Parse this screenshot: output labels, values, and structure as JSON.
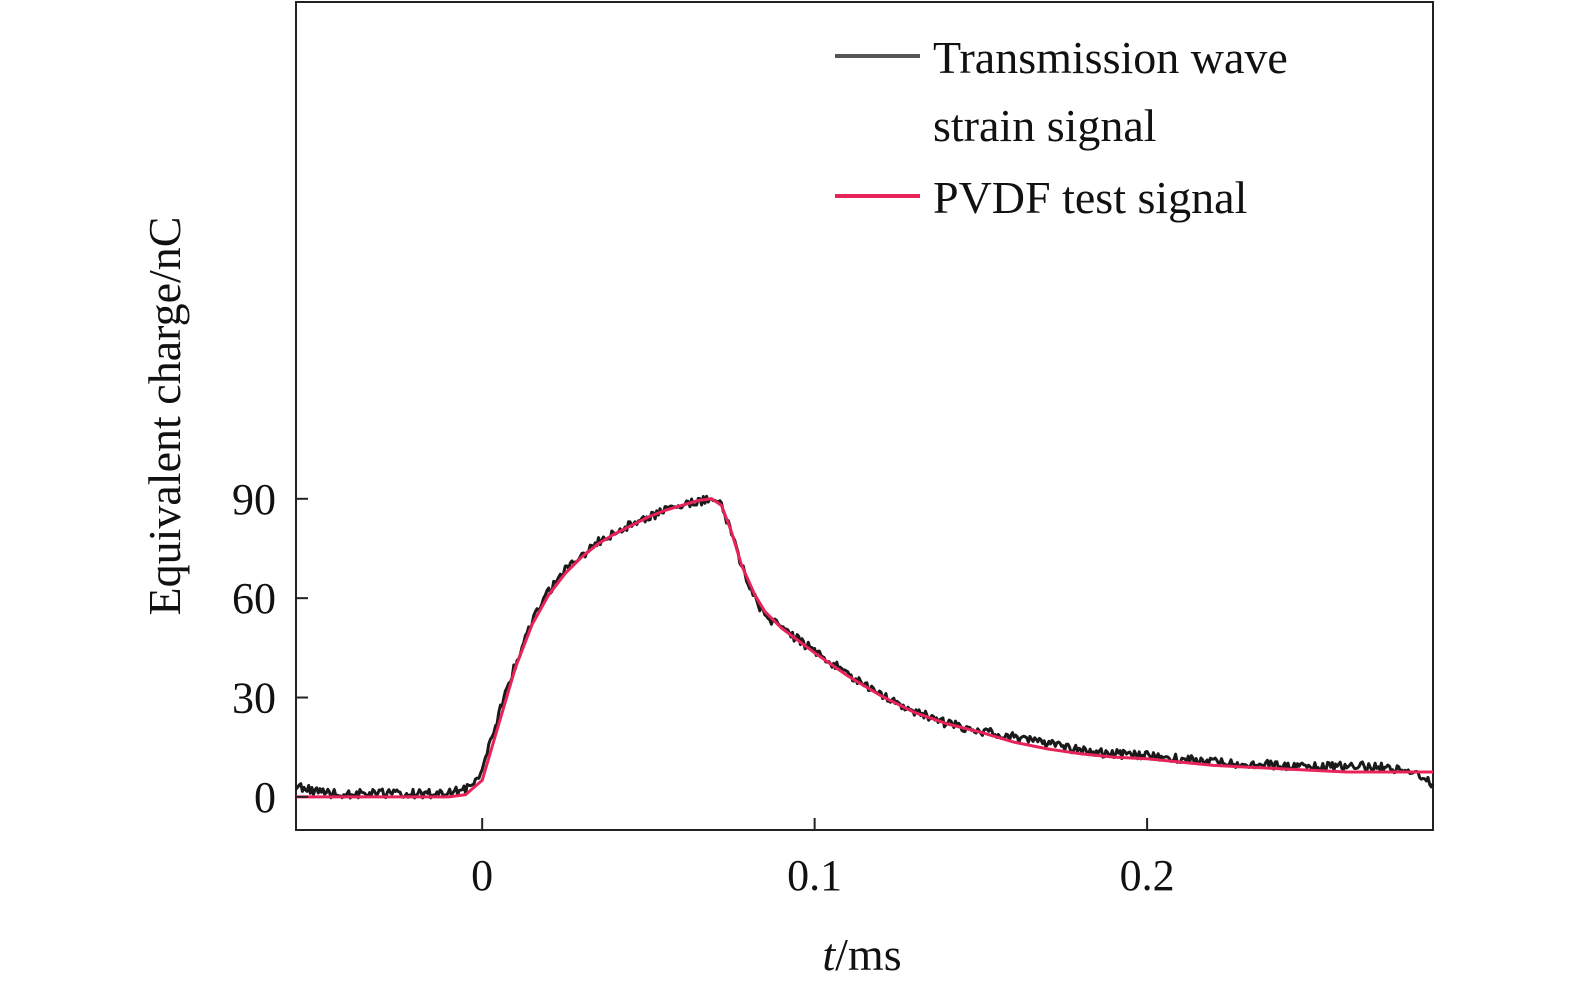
{
  "chart_data": {
    "type": "line",
    "xlabel_italic": "t",
    "xlabel_unit": "/ms",
    "ylabel": "Equivalent charge/nC",
    "xlim": [
      -0.056,
      0.286
    ],
    "ylim": [
      -10,
      240
    ],
    "x_ticks": [
      0,
      0.1,
      0.2
    ],
    "x_tick_labels": [
      "0",
      "0.1",
      "0.2"
    ],
    "y_ticks": [
      0,
      30,
      60,
      90
    ],
    "y_tick_labels": [
      "0",
      "30",
      "60",
      "90"
    ],
    "grid": false,
    "legend_position": "top-right",
    "series": [
      {
        "name": "Transmission wave strain signal",
        "legend_lines": [
          "Transmission wave",
          "strain signal"
        ],
        "color": "#1a1a1a",
        "noisy": true,
        "x": [
          -0.056,
          -0.045,
          -0.03,
          -0.015,
          -0.005,
          0.0,
          0.005,
          0.01,
          0.015,
          0.02,
          0.025,
          0.03,
          0.035,
          0.04,
          0.045,
          0.05,
          0.055,
          0.06,
          0.065,
          0.069,
          0.072,
          0.075,
          0.078,
          0.082,
          0.085,
          0.09,
          0.1,
          0.11,
          0.12,
          0.13,
          0.14,
          0.15,
          0.16,
          0.17,
          0.18,
          0.19,
          0.2,
          0.21,
          0.22,
          0.23,
          0.24,
          0.25,
          0.26,
          0.27,
          0.28,
          0.286
        ],
        "y": [
          3,
          1,
          1,
          1,
          2,
          8,
          25,
          40,
          53,
          62,
          69,
          73,
          77,
          80,
          82.5,
          84.5,
          86.5,
          88,
          89,
          90,
          88,
          80,
          70,
          60,
          55,
          51,
          44,
          37,
          31,
          26,
          22,
          20,
          18,
          16,
          14,
          13,
          12.5,
          11.5,
          10.5,
          10,
          9.5,
          9,
          9.5,
          9,
          8,
          4
        ]
      },
      {
        "name": "PVDF test signal",
        "legend_lines": [
          "PVDF test signal"
        ],
        "color": "#e8235a",
        "noisy": false,
        "x": [
          -0.056,
          -0.045,
          -0.03,
          -0.015,
          -0.01,
          -0.005,
          0.0,
          0.005,
          0.01,
          0.015,
          0.02,
          0.025,
          0.03,
          0.035,
          0.04,
          0.045,
          0.05,
          0.055,
          0.06,
          0.065,
          0.069,
          0.072,
          0.075,
          0.078,
          0.082,
          0.085,
          0.09,
          0.1,
          0.11,
          0.12,
          0.13,
          0.14,
          0.15,
          0.16,
          0.17,
          0.18,
          0.19,
          0.2,
          0.21,
          0.22,
          0.23,
          0.24,
          0.25,
          0.26,
          0.27,
          0.28,
          0.286
        ],
        "y": [
          0,
          0,
          0,
          0,
          0,
          0.7,
          5,
          22,
          39,
          52,
          61,
          67.5,
          72.5,
          76.5,
          79.5,
          82,
          84.5,
          86.5,
          88,
          89.5,
          90,
          88,
          80,
          70,
          61,
          56,
          51,
          43.5,
          36.5,
          30.5,
          25.5,
          22,
          19.5,
          16.5,
          14.5,
          13,
          12,
          11.5,
          10.5,
          9.5,
          9,
          8.5,
          8,
          7.5,
          7.5,
          7.5,
          7.5
        ]
      }
    ]
  }
}
